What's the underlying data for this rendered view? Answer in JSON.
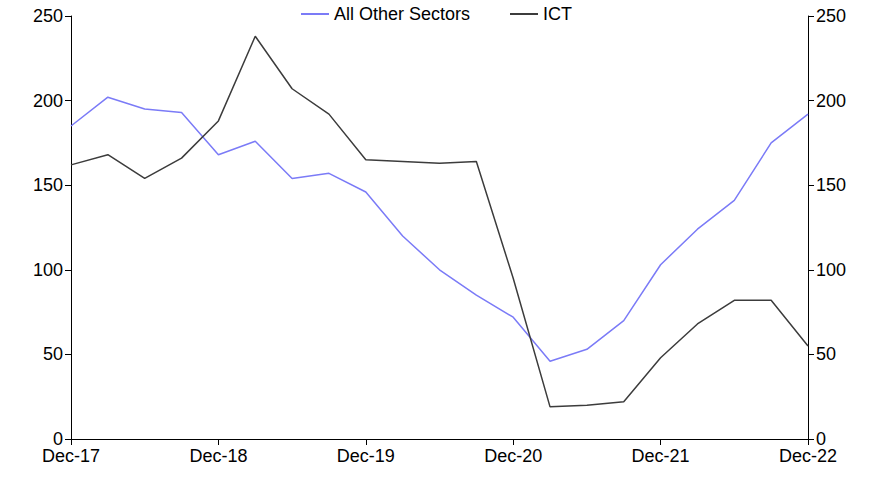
{
  "chart_data": {
    "type": "line",
    "categories": [
      "Dec-17",
      null,
      null,
      null,
      "Dec-18",
      null,
      null,
      null,
      "Dec-19",
      null,
      null,
      null,
      "Dec-20",
      null,
      null,
      null,
      "Dec-21",
      null,
      null,
      null,
      "Dec-22"
    ],
    "series": [
      {
        "name": "All Other Sectors",
        "color": "#7b7bf7",
        "values": [
          185,
          202,
          195,
          193,
          168,
          176,
          154,
          157,
          146,
          120,
          100,
          85,
          72,
          46,
          53,
          70,
          103,
          124,
          141,
          175,
          192
        ]
      },
      {
        "name": "ICT",
        "color": "#3c3c3c",
        "axis": "y2",
        "values": [
          162,
          168,
          154,
          166,
          188,
          238,
          207,
          192,
          165,
          164,
          163,
          164,
          95,
          19,
          20,
          22,
          48,
          68,
          82,
          82,
          55
        ]
      }
    ],
    "ylim": [
      0,
      250
    ],
    "yticks": [
      0,
      50,
      100,
      150,
      200,
      250
    ],
    "y2lim": [
      0,
      250
    ],
    "y2ticks": [
      0,
      50,
      100,
      150,
      200,
      250
    ],
    "grid": false,
    "legend": "top"
  }
}
